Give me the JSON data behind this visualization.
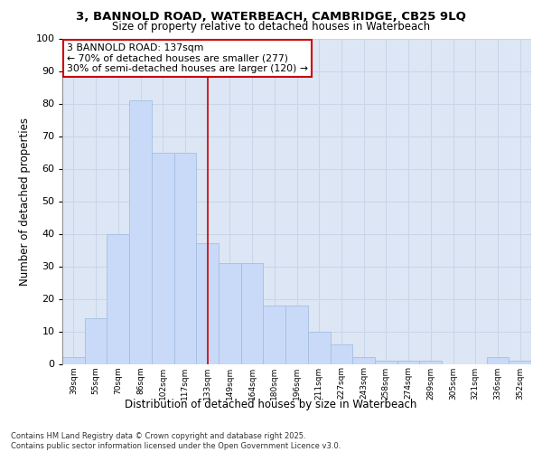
{
  "title_line1": "3, BANNOLD ROAD, WATERBEACH, CAMBRIDGE, CB25 9LQ",
  "title_line2": "Size of property relative to detached houses in Waterbeach",
  "xlabel": "Distribution of detached houses by size in Waterbeach",
  "ylabel": "Number of detached properties",
  "categories": [
    "39sqm",
    "55sqm",
    "70sqm",
    "86sqm",
    "102sqm",
    "117sqm",
    "133sqm",
    "149sqm",
    "164sqm",
    "180sqm",
    "196sqm",
    "211sqm",
    "227sqm",
    "243sqm",
    "258sqm",
    "274sqm",
    "289sqm",
    "305sqm",
    "321sqm",
    "336sqm",
    "352sqm"
  ],
  "values": [
    2,
    14,
    40,
    81,
    65,
    65,
    37,
    31,
    31,
    18,
    18,
    10,
    6,
    2,
    1,
    1,
    1,
    0,
    0,
    2,
    1
  ],
  "bar_color": "#c9daf8",
  "bar_edge_color": "#a4bfe0",
  "grid_color": "#c8d4e8",
  "background_color": "#dde6f4",
  "vline_x": 6,
  "vline_color": "#cc0000",
  "annotation_text": "3 BANNOLD ROAD: 137sqm\n← 70% of detached houses are smaller (277)\n30% of semi-detached houses are larger (120) →",
  "annotation_box_color": "#ffffff",
  "annotation_box_edge": "#cc0000",
  "footer": "Contains HM Land Registry data © Crown copyright and database right 2025.\nContains public sector information licensed under the Open Government Licence v3.0.",
  "ylim": [
    0,
    100
  ],
  "yticks": [
    0,
    10,
    20,
    30,
    40,
    50,
    60,
    70,
    80,
    90,
    100
  ]
}
